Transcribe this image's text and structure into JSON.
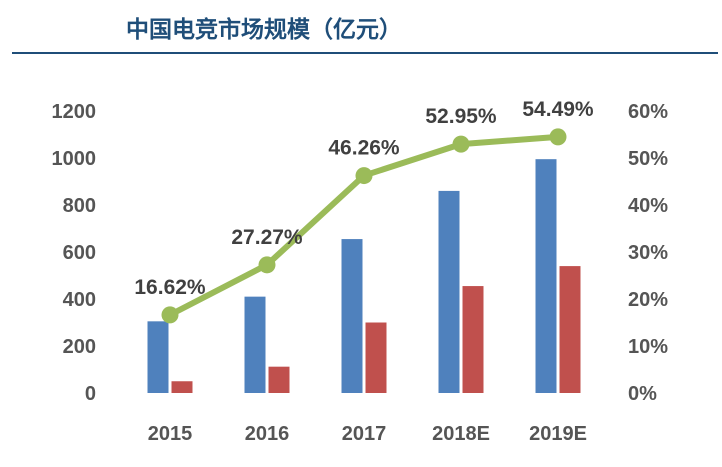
{
  "header": {
    "title": "中国电竞市场规模（亿元）"
  },
  "colors": {
    "title": "#1F4E79",
    "series_blue": "#4F81BD",
    "series_red": "#C0504D",
    "line_green": "#9BBB59",
    "tick_text": "#555555",
    "label_text": "#404040"
  },
  "chart_data": {
    "type": "bar",
    "title": "中国电竞市场规模（亿元）",
    "categories": [
      "2015",
      "2016",
      "2017",
      "2018E",
      "2019E"
    ],
    "series": [
      {
        "type": "bar",
        "axis": "left",
        "color": "#4F81BD",
        "values": [
          305,
          410,
          655,
          860,
          995
        ]
      },
      {
        "type": "bar",
        "axis": "left",
        "color": "#C0504D",
        "values": [
          50,
          112,
          300,
          455,
          540
        ]
      },
      {
        "type": "line",
        "axis": "right",
        "color": "#9BBB59",
        "values": [
          16.62,
          27.27,
          46.26,
          52.95,
          54.49
        ],
        "labels": [
          "16.62%",
          "27.27%",
          "46.26%",
          "52.95%",
          "54.49%"
        ]
      }
    ],
    "y_left": {
      "lim": [
        0,
        1200
      ],
      "ticks": [
        "0",
        "200",
        "400",
        "600",
        "800",
        "1000",
        "1200"
      ]
    },
    "y_right": {
      "lim": [
        0,
        60
      ],
      "ticks": [
        "0%",
        "10%",
        "20%",
        "30%",
        "40%",
        "50%",
        "60%"
      ]
    },
    "grid": false,
    "legend": "none"
  }
}
